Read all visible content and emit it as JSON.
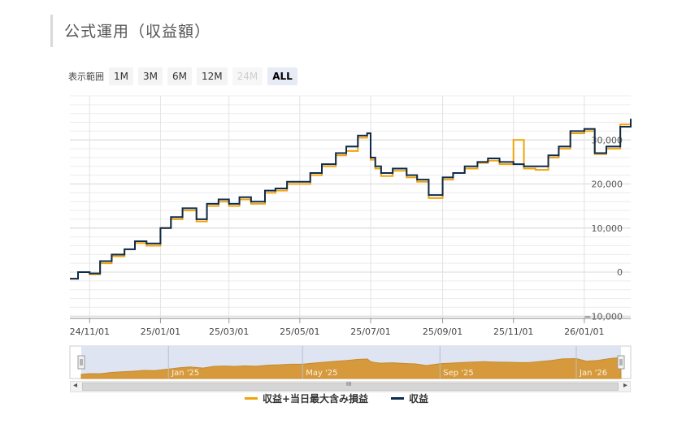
{
  "page": {
    "title": "公式運用（収益額）"
  },
  "range_selector": {
    "label": "表示範囲",
    "buttons": [
      {
        "label": "1M",
        "state": "normal"
      },
      {
        "label": "3M",
        "state": "normal"
      },
      {
        "label": "6M",
        "state": "normal"
      },
      {
        "label": "12M",
        "state": "normal"
      },
      {
        "label": "24M",
        "state": "disabled"
      },
      {
        "label": "ALL",
        "state": "active"
      }
    ]
  },
  "chart_data": {
    "type": "line",
    "x_tick_labels": [
      "24/11/01",
      "25/01/01",
      "25/03/01",
      "25/05/01",
      "25/07/01",
      "25/09/01",
      "25/11/01",
      "26/01/01"
    ],
    "y_tick_labels": [
      "−10,000",
      "0",
      "10,000",
      "20,000",
      "30,000"
    ],
    "ylim": [
      -10500,
      40000
    ],
    "grid": true,
    "legend": "bottom-center",
    "colors": {
      "income": "#0d2b4e",
      "income_plus_floating": "#f0a30a",
      "navigator_fill": "#d69a3c",
      "navigator_bg": "#dfe4f2"
    },
    "series": [
      {
        "name": "収益",
        "x": [
          "2024-10-15",
          "2024-10-22",
          "2024-11-01",
          "2024-11-10",
          "2024-11-20",
          "2024-12-01",
          "2024-12-10",
          "2024-12-20",
          "2025-01-01",
          "2025-01-10",
          "2025-01-20",
          "2025-02-01",
          "2025-02-10",
          "2025-02-20",
          "2025-03-01",
          "2025-03-10",
          "2025-03-20",
          "2025-04-01",
          "2025-04-10",
          "2025-04-20",
          "2025-05-01",
          "2025-05-10",
          "2025-05-20",
          "2025-06-01",
          "2025-06-10",
          "2025-06-20",
          "2025-06-28",
          "2025-07-01",
          "2025-07-05",
          "2025-07-10",
          "2025-07-20",
          "2025-08-01",
          "2025-08-10",
          "2025-08-20",
          "2025-09-01",
          "2025-09-10",
          "2025-09-20",
          "2025-10-01",
          "2025-10-10",
          "2025-10-20",
          "2025-11-01",
          "2025-11-10",
          "2025-11-20",
          "2025-12-01",
          "2025-12-10",
          "2025-12-20",
          "2026-01-01",
          "2026-01-10",
          "2026-01-20",
          "2026-02-01",
          "2026-02-10"
        ],
        "values": [
          -1500,
          0,
          -300,
          2500,
          4000,
          5200,
          7000,
          6500,
          10000,
          12500,
          14500,
          12000,
          15500,
          16500,
          15500,
          17000,
          16000,
          18500,
          19000,
          20500,
          20500,
          22500,
          24500,
          27000,
          28500,
          31000,
          31500,
          26000,
          24000,
          22500,
          23500,
          22000,
          21000,
          17500,
          21500,
          22500,
          24000,
          25000,
          25800,
          25000,
          24500,
          24000,
          24000,
          26500,
          28500,
          32000,
          32500,
          27000,
          28500,
          33000,
          34800
        ]
      },
      {
        "name": "収益+当日最大含み損益",
        "x": [
          "2024-10-15",
          "2024-10-22",
          "2024-11-01",
          "2024-11-10",
          "2024-11-20",
          "2024-12-01",
          "2024-12-10",
          "2024-12-20",
          "2025-01-01",
          "2025-01-10",
          "2025-01-20",
          "2025-02-01",
          "2025-02-10",
          "2025-02-20",
          "2025-03-01",
          "2025-03-10",
          "2025-03-20",
          "2025-04-01",
          "2025-04-10",
          "2025-04-20",
          "2025-05-01",
          "2025-05-10",
          "2025-05-20",
          "2025-06-01",
          "2025-06-10",
          "2025-06-20",
          "2025-06-28",
          "2025-07-01",
          "2025-07-05",
          "2025-07-10",
          "2025-07-20",
          "2025-08-01",
          "2025-08-10",
          "2025-08-20",
          "2025-09-01",
          "2025-09-10",
          "2025-09-20",
          "2025-10-01",
          "2025-10-10",
          "2025-10-20",
          "2025-11-01",
          "2025-11-10",
          "2025-11-20",
          "2025-12-01",
          "2025-12-10",
          "2025-12-20",
          "2026-01-01",
          "2026-01-10",
          "2026-01-20",
          "2026-02-01",
          "2026-02-10"
        ],
        "values": [
          -1500,
          0,
          -500,
          2000,
          3600,
          5200,
          6600,
          6000,
          10000,
          12000,
          14000,
          11500,
          15000,
          16000,
          15000,
          16500,
          15500,
          18000,
          18500,
          20000,
          20000,
          22000,
          24000,
          26500,
          27500,
          30500,
          31500,
          25500,
          23500,
          21800,
          23000,
          21500,
          20500,
          16800,
          21000,
          22500,
          23500,
          24800,
          25300,
          24500,
          30000,
          23500,
          23200,
          26000,
          28000,
          31500,
          32000,
          26800,
          28000,
          33500,
          34800
        ]
      }
    ],
    "navigator": {
      "labels": [
        "Jan '25",
        "May '25",
        "Sep '25",
        "Jan '26"
      ]
    }
  },
  "scrollbar": {
    "left_arrow": "◂",
    "right_arrow": "▸",
    "grip": "III"
  },
  "legend": {
    "items": [
      "収益+当日最大含み損益",
      "収益"
    ]
  }
}
